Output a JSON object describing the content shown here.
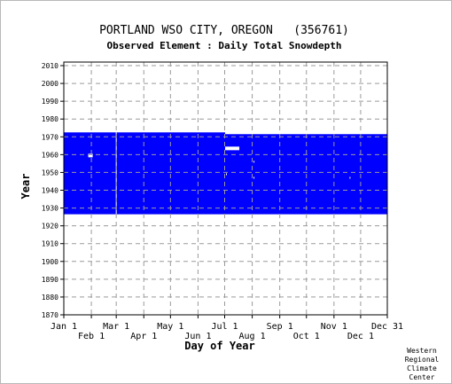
{
  "chart_data": {
    "type": "heatmap",
    "title": "PORTLAND WSO CITY, OREGON   (356761)",
    "subtitle": "Observed Element : Daily Total Snowdepth",
    "xlabel": "Day of Year",
    "ylabel": "Year",
    "credit": [
      "Western",
      "Regional",
      "Climate",
      "Center"
    ],
    "xlim": [
      1,
      365
    ],
    "ylim": [
      1870,
      2012
    ],
    "x_ticks_upper": [
      {
        "label": "Jan 1",
        "day": 1
      },
      {
        "label": "Mar 1",
        "day": 60
      },
      {
        "label": "May 1",
        "day": 121
      },
      {
        "label": "Jul 1",
        "day": 182
      },
      {
        "label": "Sep 1",
        "day": 244
      },
      {
        "label": "Nov 1",
        "day": 305
      },
      {
        "label": "Dec 31",
        "day": 365
      }
    ],
    "x_ticks_lower": [
      {
        "label": "Feb 1",
        "day": 32
      },
      {
        "label": "Apr 1",
        "day": 91
      },
      {
        "label": "Jun 1",
        "day": 152
      },
      {
        "label": "Aug 1",
        "day": 213
      },
      {
        "label": "Oct 1",
        "day": 274
      },
      {
        "label": "Dec 1",
        "day": 335
      }
    ],
    "y_ticks": [
      1870,
      1880,
      1890,
      1900,
      1910,
      1920,
      1930,
      1940,
      1950,
      1960,
      1970,
      1980,
      1990,
      2000,
      2010
    ],
    "grid": true,
    "data_color": "#0000ff",
    "gap_color": "#ffffff",
    "coverage": [
      {
        "year_start": 1927,
        "year_end": 1972,
        "day_start": 1,
        "day_end": 182
      },
      {
        "year_start": 1927,
        "year_end": 1971,
        "day_start": 183,
        "day_end": 365
      }
    ],
    "gaps": [
      {
        "year_start": 1959,
        "year_end": 1960,
        "day_start": 29,
        "day_end": 33
      },
      {
        "year_start": 1927,
        "year_end": 1972,
        "day_start": 60,
        "day_end": 60
      },
      {
        "year_start": 1963,
        "year_end": 1964,
        "day_start": 183,
        "day_end": 198
      },
      {
        "year_start": 1949,
        "year_end": 1949,
        "day_start": 184,
        "day_end": 184
      },
      {
        "year_start": 1956,
        "year_end": 1956,
        "day_start": 215,
        "day_end": 215
      },
      {
        "year_start": 1947,
        "year_end": 1947,
        "day_start": 215,
        "day_end": 215
      },
      {
        "year_start": 1947,
        "year_end": 1947,
        "day_start": 323,
        "day_end": 323
      }
    ]
  }
}
